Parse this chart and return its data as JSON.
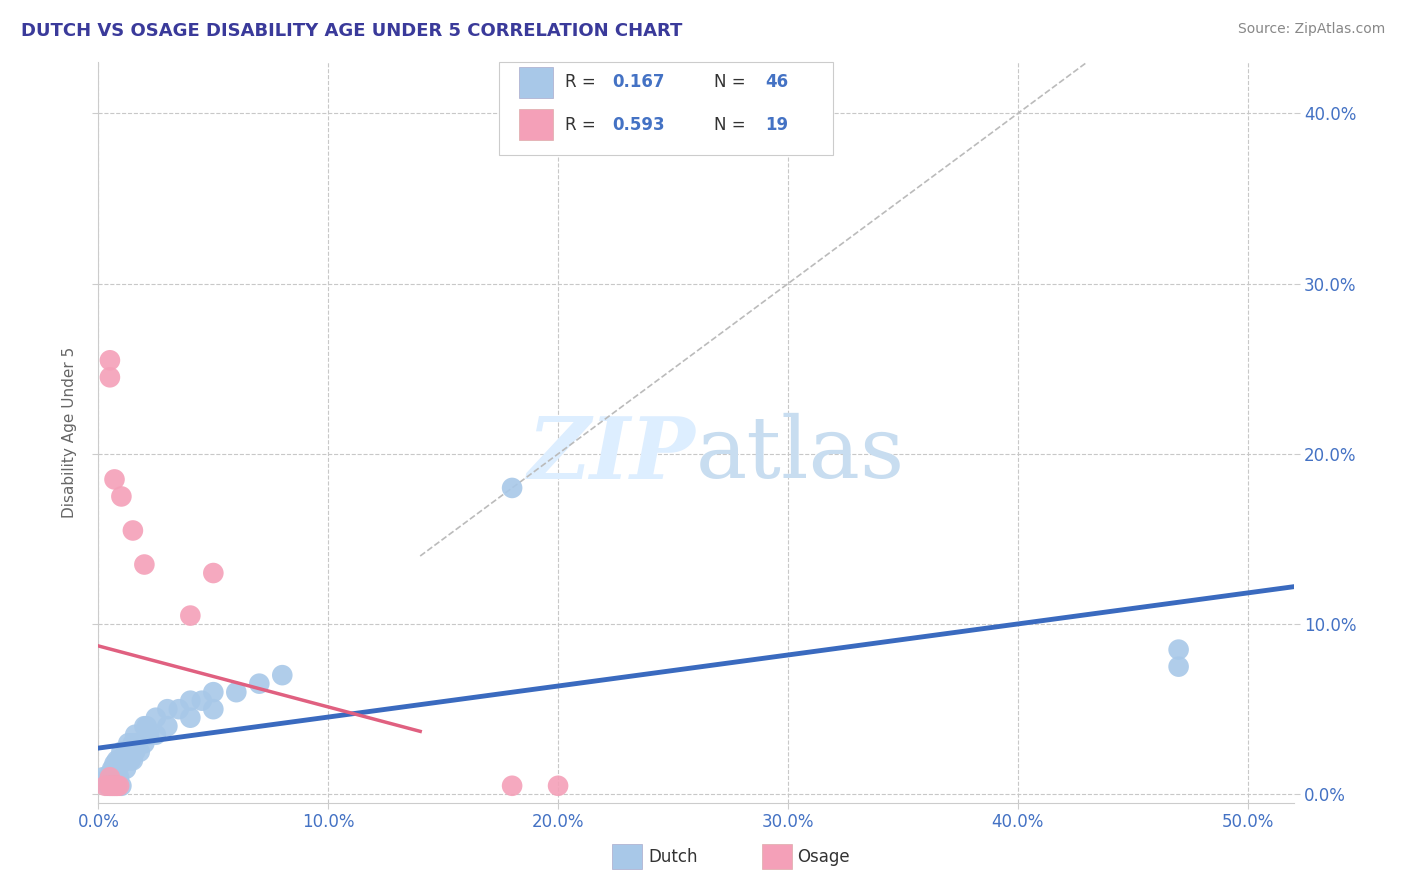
{
  "title": "DUTCH VS OSAGE DISABILITY AGE UNDER 5 CORRELATION CHART",
  "source": "Source: ZipAtlas.com",
  "ylabel_label": "Disability Age Under 5",
  "x_tick_labels": [
    "0.0%",
    "10.0%",
    "20.0%",
    "30.0%",
    "40.0%",
    "50.0%"
  ],
  "x_tick_vals": [
    0.0,
    0.1,
    0.2,
    0.3,
    0.4,
    0.5
  ],
  "y_tick_labels": [
    "0.0%",
    "10.0%",
    "20.0%",
    "30.0%",
    "40.0%"
  ],
  "y_tick_vals": [
    0.0,
    0.1,
    0.2,
    0.3,
    0.4
  ],
  "xlim": [
    0.0,
    0.52
  ],
  "ylim": [
    -0.005,
    0.43
  ],
  "dutch_color": "#a8c8e8",
  "osage_color": "#f4a0b8",
  "dutch_line_color": "#3a6abf",
  "osage_line_color": "#e06080",
  "background_color": "#ffffff",
  "grid_color": "#c8c8c8",
  "title_color": "#3a3a9a",
  "axis_label_color": "#4472c4",
  "watermark_text": "ZIPatlas",
  "watermark_color": "#ddeeff",
  "dutch_x": [
    0.002,
    0.003,
    0.004,
    0.005,
    0.005,
    0.006,
    0.007,
    0.007,
    0.007,
    0.008,
    0.008,
    0.009,
    0.009,
    0.01,
    0.01,
    0.01,
    0.012,
    0.012,
    0.013,
    0.014,
    0.015,
    0.015,
    0.016,
    0.016,
    0.017,
    0.018,
    0.02,
    0.02,
    0.021,
    0.022,
    0.025,
    0.025,
    0.03,
    0.03,
    0.035,
    0.04,
    0.04,
    0.045,
    0.05,
    0.05,
    0.06,
    0.07,
    0.08,
    0.18,
    0.47,
    0.47
  ],
  "dutch_y": [
    0.01,
    0.008,
    0.005,
    0.012,
    0.005,
    0.015,
    0.018,
    0.01,
    0.005,
    0.02,
    0.015,
    0.02,
    0.01,
    0.025,
    0.018,
    0.005,
    0.025,
    0.015,
    0.03,
    0.02,
    0.03,
    0.02,
    0.035,
    0.025,
    0.03,
    0.025,
    0.04,
    0.03,
    0.04,
    0.035,
    0.045,
    0.035,
    0.05,
    0.04,
    0.05,
    0.055,
    0.045,
    0.055,
    0.06,
    0.05,
    0.06,
    0.065,
    0.07,
    0.18,
    0.085,
    0.075
  ],
  "osage_x": [
    0.003,
    0.005,
    0.005,
    0.005,
    0.005,
    0.006,
    0.006,
    0.007,
    0.007,
    0.008,
    0.008,
    0.009,
    0.01,
    0.015,
    0.02,
    0.04,
    0.05,
    0.18,
    0.2
  ],
  "osage_y": [
    0.005,
    0.255,
    0.245,
    0.01,
    0.005,
    0.005,
    0.005,
    0.185,
    0.005,
    0.005,
    0.005,
    0.005,
    0.175,
    0.155,
    0.135,
    0.105,
    0.13,
    0.005,
    0.005
  ]
}
